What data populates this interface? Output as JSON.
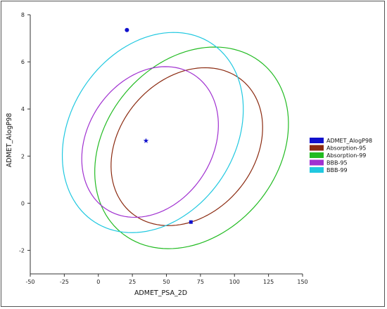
{
  "chart_data": {
    "type": "scatter",
    "title": "",
    "xlabel": "ADMET_PSA_2D",
    "ylabel": "ADMET_AlogP98",
    "xlim": [
      -50,
      150
    ],
    "ylim": [
      -3,
      8
    ],
    "xticks": [
      "-50",
      "-25",
      "0",
      "25",
      "50",
      "75",
      "100",
      "125",
      "150"
    ],
    "yticks": [
      "-2",
      "0",
      "2",
      "4",
      "6",
      "8"
    ],
    "grid": false,
    "legend_position": "right",
    "points": [
      {
        "x": 21,
        "y": 7.35,
        "marker": "circle",
        "color": "#1010cc"
      },
      {
        "x": 68,
        "y": -0.8,
        "marker": "square",
        "color": "#1010cc"
      },
      {
        "x": 35,
        "y": 2.65,
        "marker": "star",
        "color": "#1010cc"
      }
    ],
    "ellipses": [
      {
        "name": "Absorption-95",
        "color": "#8b2a10",
        "cx": 65,
        "cy": 2.4,
        "a": 63.5,
        "b": 2.85,
        "angle": -50
      },
      {
        "name": "Absorption-99",
        "color": "#22bb22",
        "cx": 68.5,
        "cy": 2.35,
        "a": 81.0,
        "b": 3.65,
        "angle": -50
      },
      {
        "name": "BBB-95",
        "color": "#a030d0",
        "cx": 38,
        "cy": 2.6,
        "a": 59.0,
        "b": 2.65,
        "angle": -57
      },
      {
        "name": "BBB-99",
        "color": "#20c8e0",
        "cx": 40,
        "cy": 3.0,
        "a": 78.5,
        "b": 3.5,
        "angle": -57
      }
    ],
    "legend": [
      {
        "label": "ADMET_AlogP98",
        "color": "#1010cc"
      },
      {
        "label": "Absorption-95",
        "color": "#8b2a10"
      },
      {
        "label": "Absorption-99",
        "color": "#22bb22"
      },
      {
        "label": "BBB-95",
        "color": "#a030d0"
      },
      {
        "label": "BBB-99",
        "color": "#20c8e0"
      }
    ]
  }
}
